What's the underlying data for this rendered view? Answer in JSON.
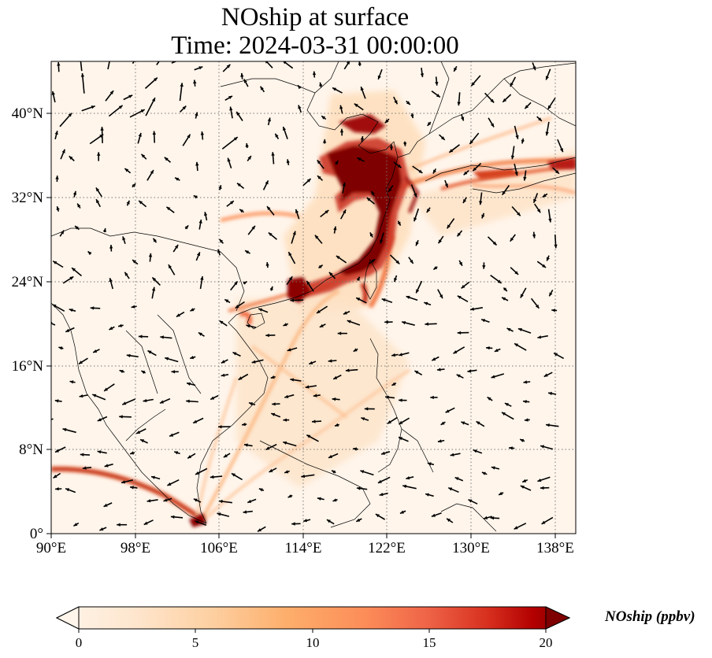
{
  "title": {
    "line1": "NOship at surface",
    "line2": "Time: 2024-03-31 00:00:00"
  },
  "map": {
    "lon_range": [
      90,
      140
    ],
    "lat_range": [
      0,
      45
    ],
    "lon_ticks": [
      90,
      98,
      106,
      114,
      122,
      130,
      138
    ],
    "lat_ticks": [
      0,
      8,
      16,
      24,
      32,
      40
    ],
    "lon_tick_labels": [
      "90°E",
      "98°E",
      "106°E",
      "114°E",
      "122°E",
      "130°E",
      "138°E"
    ],
    "lat_tick_labels": [
      "0°",
      "8°N",
      "16°N",
      "24°N",
      "32°N",
      "40°N"
    ]
  },
  "colorbar": {
    "label": "NOship (ppbv)",
    "min": 0,
    "max": 20,
    "ticks": [
      "0",
      "5",
      "10",
      "15",
      "20"
    ],
    "colors": [
      "#fff5eb",
      "#fee6ce",
      "#fdd0a2",
      "#fdae6b",
      "#fd8d3c",
      "#f16913",
      "#d94801",
      "#a63603",
      "#7f0000"
    ]
  }
}
